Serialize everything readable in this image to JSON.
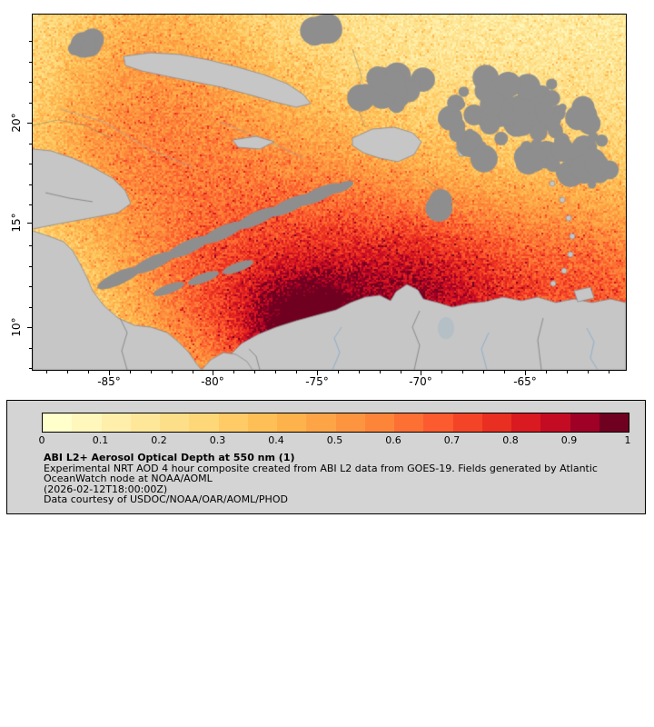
{
  "map": {
    "x_ticks": [
      "-85°",
      "-80°",
      "-75°",
      "-70°",
      "-65°"
    ],
    "y_ticks": [
      "20°",
      "15°",
      "10°"
    ]
  },
  "legend": {
    "ticks": [
      "0",
      "0.1",
      "0.2",
      "0.3",
      "0.4",
      "0.5",
      "0.6",
      "0.7",
      "0.8",
      "0.9",
      "1"
    ],
    "title": "ABI L2+ Aerosol Optical Depth at 550 nm (1)",
    "desc_line1": "Experimental NRT AOD 4 hour composite created from ABI L2 data from GOES-19. Fields generated by Atlantic",
    "desc_line2": "OceanWatch node at NOAA/AOML",
    "timestamp": "(2026-02-12T18:00:00Z)",
    "courtesy": "Data courtesy of USDOC/NOAA/OAR/AOML/PHOD",
    "range": [
      0,
      1
    ],
    "colors": [
      "#ffffcc",
      "#fff7bb",
      "#ffefaa",
      "#ffe79a",
      "#fedf89",
      "#fed778",
      "#fecb66",
      "#febf57",
      "#feb24c",
      "#fda546",
      "#fd9540",
      "#fd853a",
      "#fc7034",
      "#fb5b2e",
      "#f44427",
      "#e92f21",
      "#d91a20",
      "#c30c23",
      "#9e0026",
      "#700020"
    ]
  }
}
